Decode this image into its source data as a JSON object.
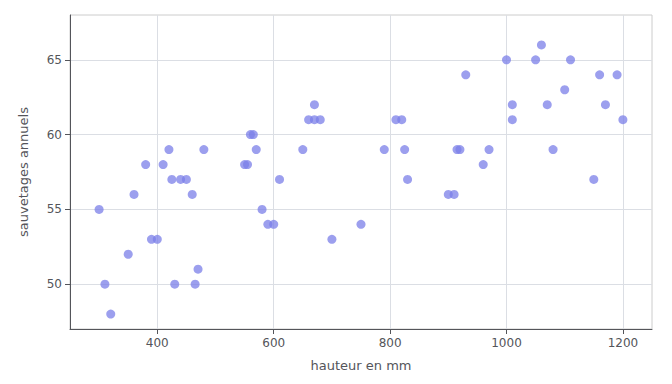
{
  "chart_data": {
    "type": "scatter",
    "x": [
      300,
      310,
      320,
      350,
      360,
      380,
      390,
      400,
      410,
      420,
      425,
      430,
      440,
      450,
      460,
      465,
      470,
      480,
      550,
      555,
      560,
      565,
      570,
      580,
      590,
      600,
      610,
      650,
      660,
      670,
      670,
      680,
      700,
      750,
      790,
      810,
      820,
      825,
      830,
      900,
      910,
      915,
      920,
      930,
      960,
      970,
      1000,
      1010,
      1010,
      1050,
      1060,
      1070,
      1080,
      1100,
      1110,
      1150,
      1160,
      1170,
      1190,
      1200
    ],
    "values": [
      55,
      50,
      48,
      52,
      56,
      58,
      53,
      53,
      58,
      59,
      57,
      50,
      57,
      57,
      56,
      50,
      51,
      59,
      58,
      58,
      60,
      60,
      59,
      55,
      54,
      54,
      57,
      59,
      61,
      62,
      61,
      61,
      53,
      54,
      59,
      61,
      61,
      59,
      57,
      56,
      56,
      59,
      59,
      64,
      58,
      59,
      65,
      62,
      61,
      65,
      66,
      62,
      59,
      63,
      65,
      57,
      64,
      62,
      64,
      61
    ],
    "color": "#7b7fe8",
    "xlabel": "hauteur en mm",
    "ylabel": "sauvetages annuels",
    "xlim": [
      250,
      1250
    ],
    "ylim": [
      47,
      68
    ],
    "xticks": [
      400,
      600,
      800,
      1000,
      1200
    ],
    "yticks": [
      50,
      55,
      60,
      65
    ],
    "grid": true
  }
}
